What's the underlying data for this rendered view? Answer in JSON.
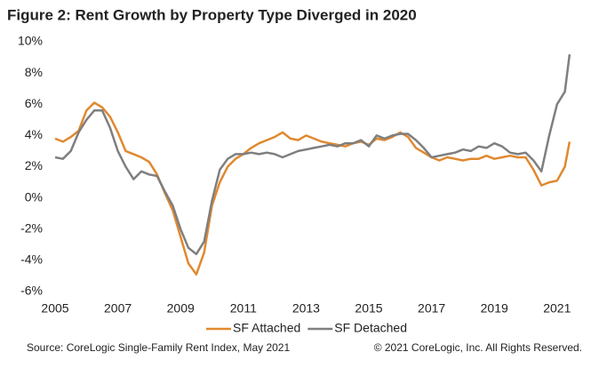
{
  "chart_data": {
    "type": "line",
    "title": "Figure 2: Rent Growth by Property Type Diverged in 2020",
    "x": [
      2005,
      2005.25,
      2005.5,
      2005.75,
      2006,
      2006.25,
      2006.5,
      2006.75,
      2007,
      2007.25,
      2007.5,
      2007.75,
      2008,
      2008.25,
      2008.5,
      2008.75,
      2009,
      2009.25,
      2009.5,
      2009.75,
      2010,
      2010.25,
      2010.5,
      2010.75,
      2011,
      2011.25,
      2011.5,
      2011.75,
      2012,
      2012.25,
      2012.5,
      2012.75,
      2013,
      2013.25,
      2013.5,
      2013.75,
      2014,
      2014.25,
      2014.5,
      2014.75,
      2015,
      2015.25,
      2015.5,
      2015.75,
      2016,
      2016.25,
      2016.5,
      2016.75,
      2017,
      2017.25,
      2017.5,
      2017.75,
      2018,
      2018.25,
      2018.5,
      2018.75,
      2019,
      2019.25,
      2019.5,
      2019.75,
      2020,
      2020.25,
      2020.5,
      2020.75,
      2021,
      2021.25,
      2021.4
    ],
    "series": [
      {
        "name": "SF Attached",
        "color": "#e0892f",
        "values": [
          3.8,
          3.6,
          3.9,
          4.3,
          5.6,
          6.1,
          5.8,
          5.2,
          4.2,
          3.0,
          2.8,
          2.6,
          2.3,
          1.5,
          0.3,
          -0.8,
          -2.5,
          -4.2,
          -4.9,
          -3.5,
          -0.5,
          1.0,
          2.0,
          2.5,
          2.8,
          3.2,
          3.5,
          3.7,
          3.9,
          4.2,
          3.8,
          3.7,
          4.0,
          3.8,
          3.6,
          3.5,
          3.4,
          3.3,
          3.5,
          3.6,
          3.4,
          3.8,
          3.7,
          3.9,
          4.2,
          3.9,
          3.2,
          2.9,
          2.6,
          2.4,
          2.6,
          2.5,
          2.4,
          2.5,
          2.5,
          2.7,
          2.5,
          2.6,
          2.7,
          2.6,
          2.6,
          1.8,
          0.8,
          1.0,
          1.1,
          2.0,
          3.6
        ]
      },
      {
        "name": "SF Detached",
        "color": "#7f7f7f",
        "values": [
          2.6,
          2.5,
          3.0,
          4.2,
          5.0,
          5.6,
          5.6,
          4.5,
          3.0,
          2.0,
          1.2,
          1.7,
          1.5,
          1.4,
          0.4,
          -0.5,
          -2.0,
          -3.2,
          -3.6,
          -2.8,
          -0.2,
          1.8,
          2.5,
          2.8,
          2.8,
          2.9,
          2.8,
          2.9,
          2.8,
          2.6,
          2.8,
          3.0,
          3.1,
          3.2,
          3.3,
          3.4,
          3.3,
          3.5,
          3.5,
          3.7,
          3.3,
          4.0,
          3.8,
          4.0,
          4.1,
          4.1,
          3.7,
          3.2,
          2.6,
          2.7,
          2.8,
          2.9,
          3.1,
          3.0,
          3.3,
          3.2,
          3.5,
          3.3,
          2.9,
          2.8,
          2.9,
          2.4,
          1.7,
          4.0,
          6.0,
          6.8,
          9.2
        ]
      }
    ],
    "xlim": [
      2005,
      2021.6
    ],
    "xticks": [
      2005,
      2007,
      2009,
      2011,
      2013,
      2015,
      2017,
      2019,
      2021
    ],
    "ylim": [
      -6,
      10
    ],
    "yticks": [
      {
        "value": -6,
        "label": "-6%"
      },
      {
        "value": -4,
        "label": "-4%"
      },
      {
        "value": -2,
        "label": "-2%"
      },
      {
        "value": 0,
        "label": "0%"
      },
      {
        "value": 2,
        "label": "2%"
      },
      {
        "value": 4,
        "label": "4%"
      },
      {
        "value": 6,
        "label": "6%"
      },
      {
        "value": 8,
        "label": "8%"
      },
      {
        "value": 10,
        "label": "10%"
      }
    ],
    "source": "Source: CoreLogic Single-Family Rent Index, May 2021",
    "copyright": "© 2021 CoreLogic, Inc. All Rights Reserved."
  }
}
